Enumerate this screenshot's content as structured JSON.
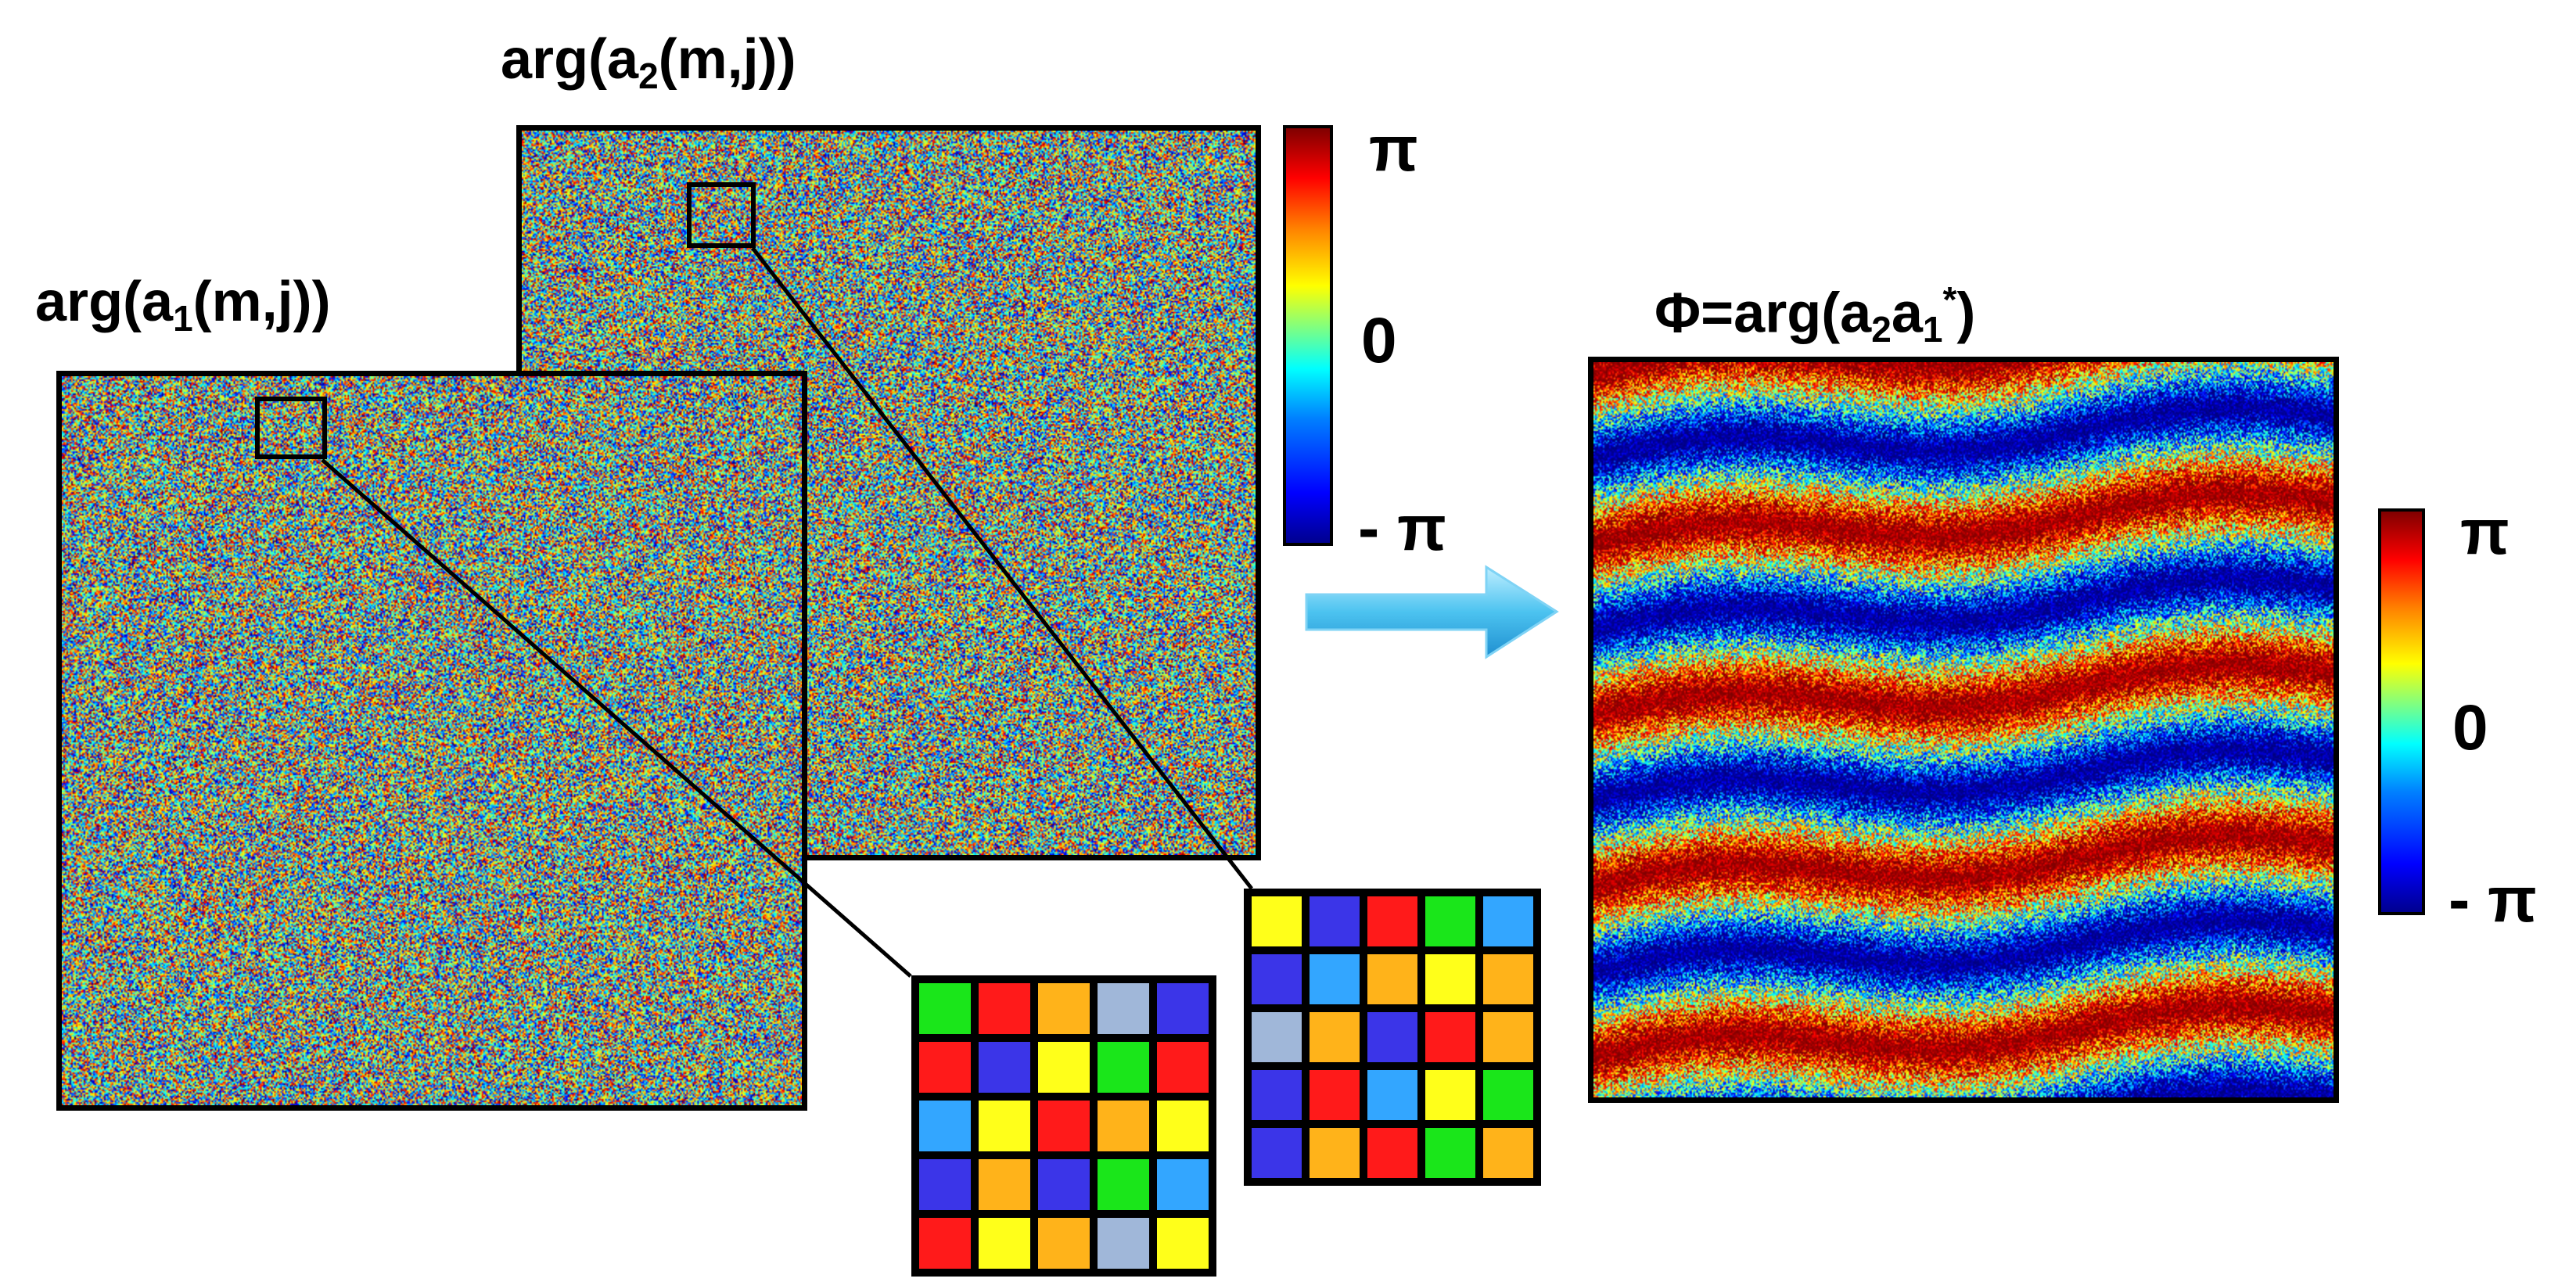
{
  "labels": {
    "a2_prefix": "arg(a",
    "a2_sub": "2",
    "a2_suffix": "(m,j))",
    "a1_prefix": "arg(a",
    "a1_sub": "1",
    "a1_suffix": "(m,j))",
    "phi_prefix": "Φ=arg(a",
    "phi_sub1": "2",
    "phi_mid": "a",
    "phi_sub2": "1",
    "phi_sup": "*",
    "phi_suffix": ")"
  },
  "colorbar_top": {
    "max": "π",
    "mid": "0",
    "min": "- π"
  },
  "colorbar_right": {
    "max": "π",
    "mid": "0",
    "min": "- π"
  },
  "colors": {
    "red": "#ff1a1a",
    "blue": "#3b35e8",
    "yellow": "#ffff1a",
    "green": "#1ae61a",
    "orange": "#ffb31a",
    "cyan": "#33a6ff",
    "lightblue": "#a0b7d9",
    "arrow": "#4cc3f0"
  },
  "grid_front": [
    [
      "green",
      "red",
      "orange",
      "lightblue",
      "blue"
    ],
    [
      "red",
      "blue",
      "yellow",
      "green",
      "red"
    ],
    [
      "cyan",
      "yellow",
      "red",
      "orange",
      "yellow"
    ],
    [
      "blue",
      "orange",
      "blue",
      "green",
      "cyan"
    ],
    [
      "red",
      "yellow",
      "orange",
      "lightblue",
      "yellow"
    ]
  ],
  "grid_back": [
    [
      "yellow",
      "blue",
      "red",
      "green",
      "cyan"
    ],
    [
      "blue",
      "cyan",
      "orange",
      "yellow",
      "orange"
    ],
    [
      "lightblue",
      "orange",
      "blue",
      "red",
      "orange"
    ],
    [
      "blue",
      "red",
      "cyan",
      "yellow",
      "green"
    ],
    [
      "blue",
      "orange",
      "red",
      "green",
      "orange"
    ]
  ]
}
